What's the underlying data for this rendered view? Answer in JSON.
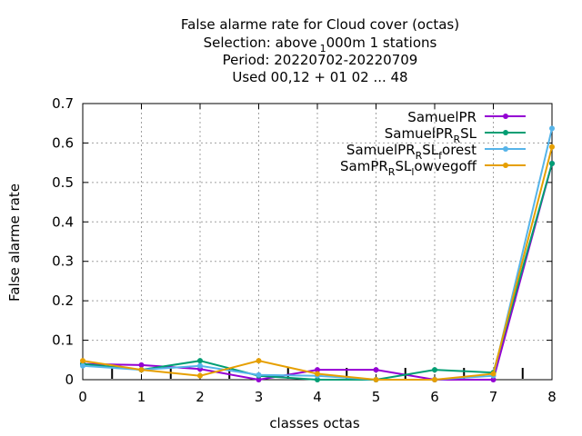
{
  "chart_data": {
    "type": "line",
    "title_lines": [
      "False alarme rate  for Cloud cover (octas)",
      "Selection: above_1000m      1 stations",
      "Period: 20220702-20220709",
      "Used  00,12  + 01 02 ... 48"
    ],
    "xlabel": "classes octas",
    "ylabel": "False alarme rate",
    "xlim": [
      0,
      8
    ],
    "ylim": [
      0,
      0.7
    ],
    "xticks": [
      "0",
      "1",
      "2",
      "3",
      "4",
      "5",
      "6",
      "7",
      "8"
    ],
    "yticks": [
      "0",
      "0.1",
      "0.2",
      "0.3",
      "0.4",
      "0.5",
      "0.6",
      "0.7"
    ],
    "grid": true,
    "legend_position": "top-right",
    "x": [
      0,
      1,
      2,
      3,
      4,
      5,
      6,
      7,
      8
    ],
    "series": [
      {
        "name": "SamuelPR",
        "color": "#9400d3",
        "values": [
          0.04,
          0.037,
          0.027,
          0.0,
          0.025,
          0.025,
          0.0,
          0.0,
          0.548
        ]
      },
      {
        "name": "SamuelPR_RSL",
        "color": "#009e73",
        "values": [
          0.04,
          0.025,
          0.048,
          0.01,
          0.0,
          0.0,
          0.025,
          0.018,
          0.548
        ]
      },
      {
        "name": "SamuelPR_RSL_forest",
        "color": "#56b4e9",
        "values": [
          0.035,
          0.025,
          0.035,
          0.012,
          0.01,
          0.0,
          0.0,
          0.01,
          0.637
        ]
      },
      {
        "name": "SamPR_RSL_lowvegoff",
        "color": "#e69f00",
        "values": [
          0.048,
          0.025,
          0.01,
          0.048,
          0.015,
          0.0,
          0.0,
          0.015,
          0.59
        ]
      }
    ],
    "sample_ticks_x": [
      0.5,
      1.5,
      2.5,
      3.5,
      4.5,
      5.5,
      6.5,
      7.5
    ]
  }
}
